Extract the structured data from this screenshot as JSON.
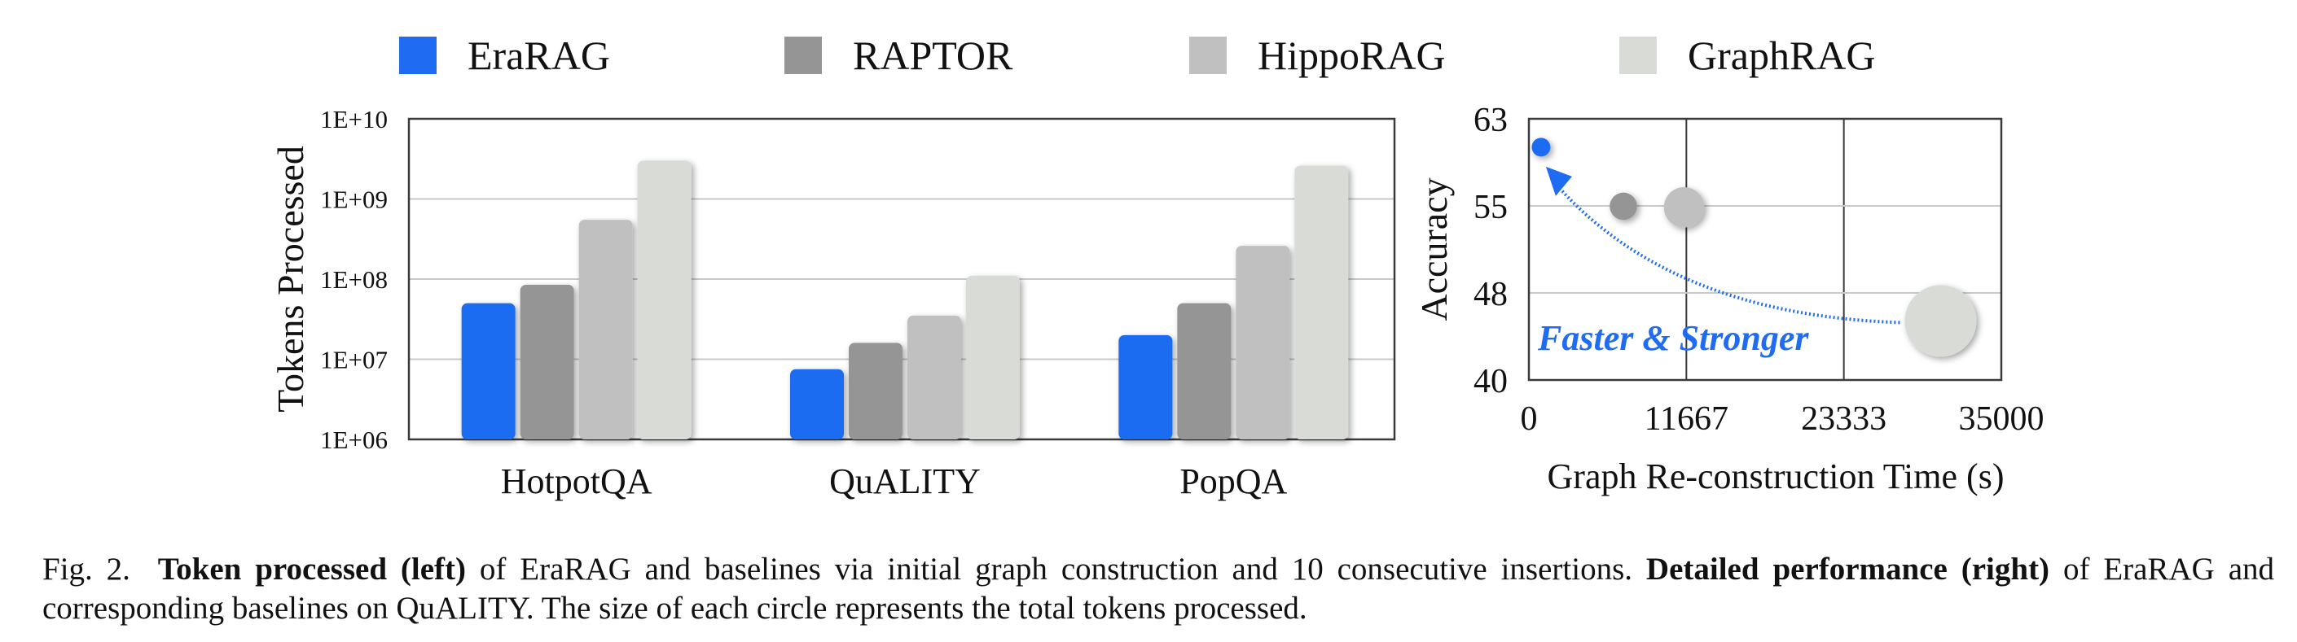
{
  "legend": {
    "items": [
      {
        "label": "EraRAG",
        "color": "#1f6cf2"
      },
      {
        "label": "RAPTOR",
        "color": "#959595"
      },
      {
        "label": "HippoRAG",
        "color": "#c0c0c0"
      },
      {
        "label": "GraphRAG",
        "color": "#d8dbd6"
      }
    ]
  },
  "chart_data": [
    {
      "type": "bar",
      "title": "Token processed (left)",
      "scale": "log",
      "xlabel": "",
      "ylabel": "Tokens Processed",
      "ylim": [
        1000000,
        10000000000
      ],
      "yticks": [
        "1E+06",
        "1E+07",
        "1E+08",
        "1E+09",
        "1E+10"
      ],
      "categories": [
        "HotpotQA",
        "QuALITY",
        "PopQA"
      ],
      "series": [
        {
          "name": "EraRAG",
          "color": "#1f6cf2",
          "values": [
            50000000,
            7500000,
            20000000
          ]
        },
        {
          "name": "RAPTOR",
          "color": "#959595",
          "values": [
            85000000,
            16000000,
            50000000
          ]
        },
        {
          "name": "HippoRAG",
          "color": "#c0c0c0",
          "values": [
            550000000,
            35000000,
            260000000
          ]
        },
        {
          "name": "GraphRAG",
          "color": "#d8dbd6",
          "values": [
            3000000000,
            110000000,
            2600000000
          ]
        }
      ]
    },
    {
      "type": "scatter",
      "title": "Detailed performance (right)",
      "dataset": "QuALITY",
      "xlabel": "Graph Re-construction Time (s)",
      "ylabel": "Accuracy",
      "xlim": [
        0,
        35000
      ],
      "ylim": [
        40,
        63
      ],
      "xticks": [
        0,
        11667,
        23333,
        35000
      ],
      "yticks": [
        40,
        48,
        55,
        63
      ],
      "points": [
        {
          "name": "EraRAG",
          "color": "#1f6cf2",
          "x": 900,
          "y": 60.5,
          "tokens": 7500000
        },
        {
          "name": "RAPTOR",
          "color": "#959595",
          "x": 7000,
          "y": 55.3,
          "tokens": 16000000
        },
        {
          "name": "HippoRAG",
          "color": "#c0c0c0",
          "x": 11500,
          "y": 55.2,
          "tokens": 35000000
        },
        {
          "name": "GraphRAG",
          "color": "#d8dbd6",
          "x": 30500,
          "y": 45.2,
          "tokens": 110000000
        }
      ],
      "annotation": {
        "text": "Faster & Stronger",
        "color": "#1f6cf2"
      }
    }
  ],
  "caption": {
    "fig": "Fig. 2.",
    "bold1": "Token processed (left)",
    "text1": "of EraRAG and baselines via initial graph construction and 10 consecutive insertions.",
    "bold2": "Detailed performance (right)",
    "text2": "of EraRAG and corresponding baselines on QuALITY. The size of each circle represents the total tokens processed."
  }
}
